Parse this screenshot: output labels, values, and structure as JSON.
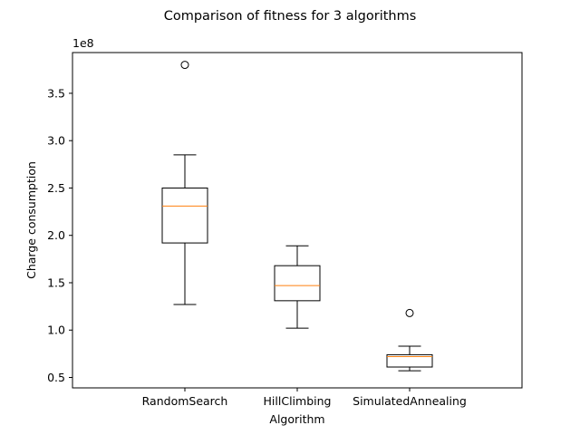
{
  "chart_data": {
    "type": "boxplot",
    "title": "Comparison of fitness for 3 algorithms",
    "xlabel": "Algorithm",
    "ylabel": "Charge consumption",
    "y_multiplier_label": "1e8",
    "y_scale": 100000000,
    "ylim": [
      0.39,
      3.93
    ],
    "yticks": [
      0.5,
      1.0,
      1.5,
      2.0,
      2.5,
      3.0,
      3.5
    ],
    "ytick_labels": [
      "0.5",
      "1.0",
      "1.5",
      "2.0",
      "2.5",
      "3.0",
      "3.5"
    ],
    "categories": [
      "RandomSearch",
      "HillClimbing",
      "SimulatedAnnealing"
    ],
    "boxes": [
      {
        "whisker_low": 1.27,
        "q1": 1.92,
        "median": 2.31,
        "q3": 2.5,
        "whisker_high": 2.85,
        "outliers": [
          3.8
        ]
      },
      {
        "whisker_low": 1.02,
        "q1": 1.31,
        "median": 1.47,
        "q3": 1.68,
        "whisker_high": 1.89,
        "outliers": []
      },
      {
        "whisker_low": 0.57,
        "q1": 0.61,
        "median": 0.72,
        "q3": 0.74,
        "whisker_high": 0.83,
        "outliers": [
          1.18
        ]
      }
    ],
    "grid": false,
    "colors": {
      "box": "#000000",
      "median": "#ff7f0e",
      "axes": "#000000",
      "background": "#ffffff"
    }
  }
}
